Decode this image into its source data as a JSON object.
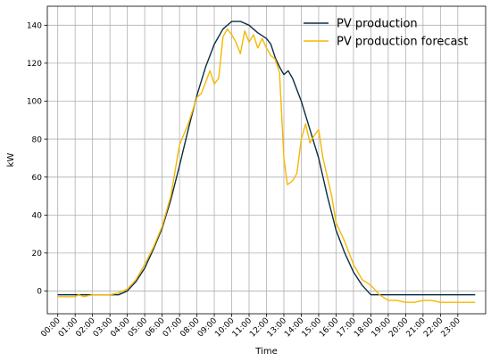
{
  "chart_data": {
    "type": "line",
    "xlabel": "Time",
    "ylabel": "kW",
    "xlim": [
      -0.6,
      24.6
    ],
    "ylim": [
      -12,
      150
    ],
    "grid": true,
    "legend_position": "top-right",
    "x_ticks": [
      "00:00",
      "01:00",
      "02:00",
      "03:00",
      "04:00",
      "05:00",
      "06:00",
      "07:00",
      "08:00",
      "09:00",
      "10:00",
      "11:00",
      "12:00",
      "13:00",
      "14:00",
      "15:00",
      "16:00",
      "17:00",
      "18:00",
      "19:00",
      "20:00",
      "21:00",
      "22:00",
      "23:00"
    ],
    "y_ticks": [
      0,
      20,
      40,
      60,
      80,
      100,
      120,
      140
    ],
    "series": [
      {
        "name": "PV production",
        "color": "#0b2e45",
        "points": [
          [
            0,
            -2
          ],
          [
            1,
            -2
          ],
          [
            2,
            -2
          ],
          [
            3,
            -2
          ],
          [
            3.5,
            -2
          ],
          [
            4,
            0
          ],
          [
            4.5,
            5
          ],
          [
            5,
            12
          ],
          [
            5.5,
            22
          ],
          [
            6,
            33
          ],
          [
            6.5,
            48
          ],
          [
            7,
            66
          ],
          [
            7.5,
            85
          ],
          [
            8,
            103
          ],
          [
            8.5,
            118
          ],
          [
            9,
            130
          ],
          [
            9.5,
            138
          ],
          [
            10,
            142
          ],
          [
            10.5,
            142
          ],
          [
            11,
            140
          ],
          [
            11.5,
            136
          ],
          [
            12,
            133
          ],
          [
            12.25,
            130
          ],
          [
            12.5,
            123
          ],
          [
            12.75,
            118
          ],
          [
            13,
            114
          ],
          [
            13.25,
            116
          ],
          [
            13.5,
            112
          ],
          [
            14,
            100
          ],
          [
            14.5,
            85
          ],
          [
            15,
            70
          ],
          [
            15.5,
            50
          ],
          [
            16,
            32
          ],
          [
            16.5,
            20
          ],
          [
            17,
            10
          ],
          [
            17.5,
            3
          ],
          [
            18,
            -2
          ],
          [
            18.5,
            -2
          ],
          [
            19,
            -2
          ],
          [
            20,
            -2
          ],
          [
            21,
            -2
          ],
          [
            22,
            -2
          ],
          [
            23,
            -2
          ],
          [
            24,
            -2
          ]
        ]
      },
      {
        "name": "PV production forecast",
        "color": "#f5b800",
        "points": [
          [
            0,
            -3
          ],
          [
            1,
            -3
          ],
          [
            1.2,
            -2
          ],
          [
            1.5,
            -3
          ],
          [
            2,
            -2
          ],
          [
            3,
            -2
          ],
          [
            3.5,
            -1
          ],
          [
            4,
            1
          ],
          [
            4.5,
            6
          ],
          [
            5,
            14
          ],
          [
            5.5,
            23
          ],
          [
            6,
            34
          ],
          [
            6.5,
            50
          ],
          [
            7,
            77
          ],
          [
            7.5,
            88
          ],
          [
            8,
            102
          ],
          [
            8.25,
            104
          ],
          [
            8.5,
            110
          ],
          [
            8.75,
            116
          ],
          [
            9,
            109
          ],
          [
            9.25,
            112
          ],
          [
            9.5,
            134
          ],
          [
            9.75,
            138
          ],
          [
            10,
            135
          ],
          [
            10.25,
            131
          ],
          [
            10.5,
            125
          ],
          [
            10.75,
            137
          ],
          [
            11,
            131
          ],
          [
            11.25,
            135
          ],
          [
            11.5,
            128
          ],
          [
            11.75,
            133
          ],
          [
            12,
            128
          ],
          [
            12.25,
            124
          ],
          [
            12.5,
            122
          ],
          [
            12.75,
            115
          ],
          [
            13,
            70
          ],
          [
            13.2,
            56
          ],
          [
            13.5,
            58
          ],
          [
            13.75,
            62
          ],
          [
            14,
            80
          ],
          [
            14.25,
            88
          ],
          [
            14.5,
            78
          ],
          [
            14.75,
            82
          ],
          [
            15,
            85
          ],
          [
            15.25,
            70
          ],
          [
            15.5,
            60
          ],
          [
            15.75,
            50
          ],
          [
            16,
            36
          ],
          [
            16.5,
            26
          ],
          [
            17,
            14
          ],
          [
            17.5,
            6
          ],
          [
            18,
            3
          ],
          [
            18.5,
            -2
          ],
          [
            19,
            -5
          ],
          [
            19.5,
            -5
          ],
          [
            20,
            -6
          ],
          [
            20.5,
            -6
          ],
          [
            21,
            -5
          ],
          [
            21.5,
            -5
          ],
          [
            22,
            -6
          ],
          [
            22.5,
            -6
          ],
          [
            23,
            -6
          ],
          [
            24,
            -6
          ]
        ]
      }
    ]
  }
}
